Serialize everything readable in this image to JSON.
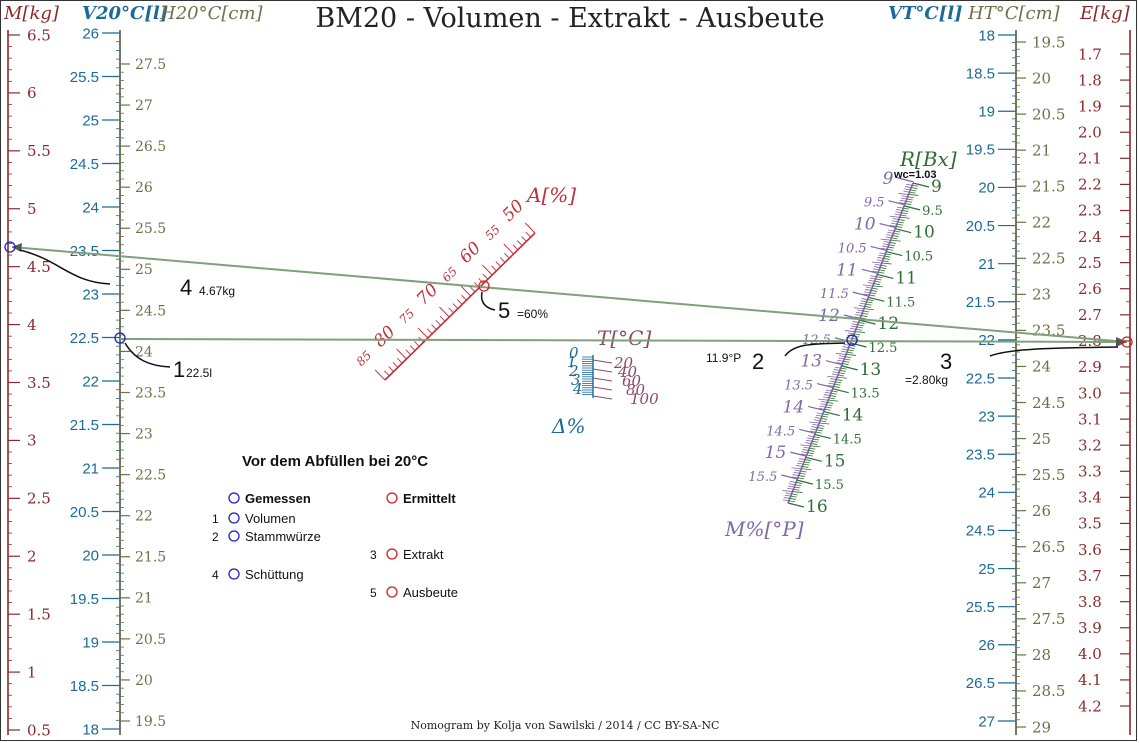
{
  "title": "BM20 - Volumen - Extrakt - Ausbeute",
  "credit": "Nomogram by Kolja von Sawilski / 2014 / CC BY-SA-NC",
  "colors": {
    "red": "#8b2a2a",
    "blue": "#1b6a9a",
    "olive": "#6f6f48",
    "green": "#2f6e35",
    "purple": "#8067a8",
    "crimson": "#c0303a",
    "line": "#7fa07a",
    "circleBlue": "#2020c0",
    "circleRed": "#d02020"
  },
  "axes": {
    "mass": {
      "label": "M[kg]",
      "ticks": [
        "6.5",
        "6",
        "5.5",
        "5",
        "4.5",
        "4",
        "3.5",
        "3",
        "2.5",
        "2",
        "1.5",
        "1",
        "0.5"
      ]
    },
    "volume20": {
      "label": "V20°C[l]",
      "ticks": [
        "26",
        "25.5",
        "25",
        "24.5",
        "24",
        "23.5",
        "23",
        "22.5",
        "22",
        "21.5",
        "21",
        "20.5",
        "20",
        "19.5",
        "19",
        "18.5",
        "18"
      ]
    },
    "height20": {
      "label": "H20°C[cm]",
      "ticks": [
        "27.5",
        "27",
        "26.5",
        "26",
        "25.5",
        "25",
        "24.5",
        "24",
        "23.5",
        "23",
        "22.5",
        "22",
        "21.5",
        "21",
        "20.5",
        "20",
        "19.5"
      ]
    },
    "volumeT": {
      "label": "VT°C[l]",
      "ticks": [
        "18",
        "18.5",
        "19",
        "19.5",
        "20",
        "20.5",
        "21",
        "21.5",
        "22",
        "22.5",
        "23",
        "23.5",
        "24",
        "24.5",
        "25",
        "25.5",
        "26",
        "26.5",
        "27"
      ]
    },
    "heightT": {
      "label": "HT°C[cm]",
      "ticks": [
        "19.5",
        "20",
        "20.5",
        "21",
        "21.5",
        "22",
        "22.5",
        "23",
        "23.5",
        "24",
        "24.5",
        "25",
        "25.5",
        "26",
        "26.5",
        "27",
        "27.5",
        "28",
        "28.5",
        "29"
      ]
    },
    "extract": {
      "label": "E[kg]",
      "ticks": [
        "1.7",
        "1.8",
        "1.9",
        "2.0",
        "2.1",
        "2.2",
        "2.3",
        "2.4",
        "2.5",
        "2.6",
        "2.7",
        "2.8",
        "2.9",
        "3.0",
        "3.1",
        "3.2",
        "3.3",
        "3.4",
        "3.5",
        "3.6",
        "3.7",
        "3.8",
        "3.9",
        "4.0",
        "4.1",
        "4.2"
      ]
    },
    "refract": {
      "label": "R[Bx]",
      "wc": "wc=1.03",
      "ticks": [
        "9",
        "9.5",
        "10",
        "10.5",
        "11",
        "11.5",
        "12",
        "12.5",
        "13",
        "13.5",
        "14",
        "14.5",
        "15",
        "15.5",
        "16"
      ]
    },
    "plato": {
      "label": "M%[°P]",
      "ticks": [
        "9",
        "9.5",
        "10",
        "10.5",
        "11",
        "11.5",
        "12",
        "12.5",
        "13",
        "13.5",
        "14",
        "14.5",
        "15",
        "15.5"
      ]
    },
    "yield": {
      "label": "A[%]",
      "ticks": [
        "50",
        "55",
        "60",
        "65",
        "70",
        "75",
        "80",
        "85"
      ]
    },
    "temp": {
      "label": "T[°C]",
      "ticks": [
        "20",
        "40",
        "60",
        "80",
        "100"
      ]
    },
    "delta": {
      "label": "Δ%",
      "ticks": [
        "0",
        "1",
        "2",
        "3",
        "4"
      ]
    }
  },
  "annotations": {
    "a1_num": "1",
    "a1_val": "22.5l",
    "a2_num": "2",
    "a2_val": "11.9°P",
    "a3_num": "3",
    "a3_val": "=2.80kg",
    "a4_num": "4",
    "a4_val": "4.67kg",
    "a5_num": "5",
    "a5_val": "=60%"
  },
  "legend": {
    "heading": "Vor dem Abfüllen bei 20°C",
    "measured": "Gemessen",
    "computed": "Ermittelt",
    "items": [
      {
        "num": "1",
        "label": "Volumen"
      },
      {
        "num": "2",
        "label": "Stammwürze"
      },
      {
        "num": "3",
        "label": "Extrakt"
      },
      {
        "num": "4",
        "label": "Schüttung"
      },
      {
        "num": "5",
        "label": "Ausbeute"
      }
    ]
  }
}
